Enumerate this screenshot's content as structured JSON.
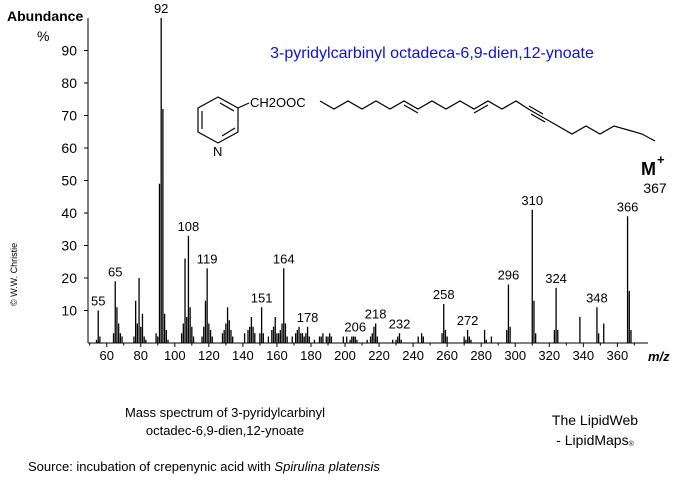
{
  "chart_data": {
    "type": "bar",
    "title": "3-pyridylcarbinyl octadeca-6,9-dien,12-ynoate",
    "ylabel": "Abundance",
    "ylabel_unit": "%",
    "xlabel": "m/z",
    "xlim": [
      49,
      378
    ],
    "ylim": [
      0,
      100
    ],
    "x_ticks": [
      60,
      80,
      100,
      120,
      140,
      160,
      180,
      200,
      220,
      240,
      260,
      280,
      300,
      320,
      340,
      360
    ],
    "y_ticks": [
      10,
      20,
      30,
      40,
      50,
      60,
      70,
      80,
      90
    ],
    "peaks": [
      {
        "mz": 54,
        "i": 1
      },
      {
        "mz": 55,
        "i": 10
      },
      {
        "mz": 56,
        "i": 2
      },
      {
        "mz": 64,
        "i": 3
      },
      {
        "mz": 65,
        "i": 19
      },
      {
        "mz": 66,
        "i": 11
      },
      {
        "mz": 67,
        "i": 6
      },
      {
        "mz": 68,
        "i": 3
      },
      {
        "mz": 69,
        "i": 2
      },
      {
        "mz": 76,
        "i": 2
      },
      {
        "mz": 77,
        "i": 13
      },
      {
        "mz": 78,
        "i": 6
      },
      {
        "mz": 79,
        "i": 20
      },
      {
        "mz": 80,
        "i": 5
      },
      {
        "mz": 81,
        "i": 9
      },
      {
        "mz": 82,
        "i": 2
      },
      {
        "mz": 83,
        "i": 1
      },
      {
        "mz": 89,
        "i": 3
      },
      {
        "mz": 90,
        "i": 2
      },
      {
        "mz": 91,
        "i": 49
      },
      {
        "mz": 92,
        "i": 100
      },
      {
        "mz": 93,
        "i": 72
      },
      {
        "mz": 94,
        "i": 9
      },
      {
        "mz": 95,
        "i": 4
      },
      {
        "mz": 96,
        "i": 1
      },
      {
        "mz": 104,
        "i": 3
      },
      {
        "mz": 105,
        "i": 6
      },
      {
        "mz": 106,
        "i": 26
      },
      {
        "mz": 107,
        "i": 8
      },
      {
        "mz": 108,
        "i": 33
      },
      {
        "mz": 109,
        "i": 11
      },
      {
        "mz": 110,
        "i": 5
      },
      {
        "mz": 111,
        "i": 2
      },
      {
        "mz": 116,
        "i": 2
      },
      {
        "mz": 117,
        "i": 5
      },
      {
        "mz": 118,
        "i": 13
      },
      {
        "mz": 119,
        "i": 23
      },
      {
        "mz": 120,
        "i": 6
      },
      {
        "mz": 121,
        "i": 4
      },
      {
        "mz": 122,
        "i": 2
      },
      {
        "mz": 128,
        "i": 3
      },
      {
        "mz": 129,
        "i": 4
      },
      {
        "mz": 130,
        "i": 6
      },
      {
        "mz": 131,
        "i": 11
      },
      {
        "mz": 132,
        "i": 7
      },
      {
        "mz": 133,
        "i": 4
      },
      {
        "mz": 134,
        "i": 2
      },
      {
        "mz": 141,
        "i": 3
      },
      {
        "mz": 143,
        "i": 4
      },
      {
        "mz": 144,
        "i": 5
      },
      {
        "mz": 145,
        "i": 8
      },
      {
        "mz": 146,
        "i": 5
      },
      {
        "mz": 147,
        "i": 3
      },
      {
        "mz": 150,
        "i": 3
      },
      {
        "mz": 151,
        "i": 11
      },
      {
        "mz": 152,
        "i": 3
      },
      {
        "mz": 155,
        "i": 2
      },
      {
        "mz": 157,
        "i": 4
      },
      {
        "mz": 158,
        "i": 5
      },
      {
        "mz": 159,
        "i": 8
      },
      {
        "mz": 160,
        "i": 3
      },
      {
        "mz": 161,
        "i": 3
      },
      {
        "mz": 162,
        "i": 4
      },
      {
        "mz": 163,
        "i": 6
      },
      {
        "mz": 164,
        "i": 23
      },
      {
        "mz": 165,
        "i": 6
      },
      {
        "mz": 166,
        "i": 2
      },
      {
        "mz": 169,
        "i": 2
      },
      {
        "mz": 171,
        "i": 3
      },
      {
        "mz": 172,
        "i": 4
      },
      {
        "mz": 173,
        "i": 5
      },
      {
        "mz": 174,
        "i": 3
      },
      {
        "mz": 175,
        "i": 3
      },
      {
        "mz": 176,
        "i": 2
      },
      {
        "mz": 177,
        "i": 3
      },
      {
        "mz": 178,
        "i": 5
      },
      {
        "mz": 179,
        "i": 2
      },
      {
        "mz": 182,
        "i": 1
      },
      {
        "mz": 185,
        "i": 2
      },
      {
        "mz": 186,
        "i": 2
      },
      {
        "mz": 187,
        "i": 3
      },
      {
        "mz": 189,
        "i": 2
      },
      {
        "mz": 190,
        "i": 2
      },
      {
        "mz": 191,
        "i": 3
      },
      {
        "mz": 192,
        "i": 2
      },
      {
        "mz": 199,
        "i": 2
      },
      {
        "mz": 201,
        "i": 2
      },
      {
        "mz": 203,
        "i": 1
      },
      {
        "mz": 204,
        "i": 2
      },
      {
        "mz": 205,
        "i": 2
      },
      {
        "mz": 206,
        "i": 2
      },
      {
        "mz": 207,
        "i": 1
      },
      {
        "mz": 213,
        "i": 1
      },
      {
        "mz": 215,
        "i": 2
      },
      {
        "mz": 216,
        "i": 3
      },
      {
        "mz": 217,
        "i": 5
      },
      {
        "mz": 218,
        "i": 6
      },
      {
        "mz": 219,
        "i": 2
      },
      {
        "mz": 228,
        "i": 1
      },
      {
        "mz": 230,
        "i": 1
      },
      {
        "mz": 231,
        "i": 2
      },
      {
        "mz": 232,
        "i": 3
      },
      {
        "mz": 233,
        "i": 1
      },
      {
        "mz": 243,
        "i": 2
      },
      {
        "mz": 245,
        "i": 3
      },
      {
        "mz": 246,
        "i": 2
      },
      {
        "mz": 257,
        "i": 3
      },
      {
        "mz": 258,
        "i": 12
      },
      {
        "mz": 259,
        "i": 4
      },
      {
        "mz": 260,
        "i": 2
      },
      {
        "mz": 270,
        "i": 2
      },
      {
        "mz": 271,
        "i": 1
      },
      {
        "mz": 272,
        "i": 4
      },
      {
        "mz": 273,
        "i": 2
      },
      {
        "mz": 274,
        "i": 1
      },
      {
        "mz": 282,
        "i": 4
      },
      {
        "mz": 283,
        "i": 1
      },
      {
        "mz": 286,
        "i": 2
      },
      {
        "mz": 295,
        "i": 4
      },
      {
        "mz": 296,
        "i": 18
      },
      {
        "mz": 297,
        "i": 5
      },
      {
        "mz": 310,
        "i": 41
      },
      {
        "mz": 311,
        "i": 13
      },
      {
        "mz": 312,
        "i": 3
      },
      {
        "mz": 323,
        "i": 4
      },
      {
        "mz": 324,
        "i": 17
      },
      {
        "mz": 325,
        "i": 4
      },
      {
        "mz": 338,
        "i": 8
      },
      {
        "mz": 348,
        "i": 11
      },
      {
        "mz": 349,
        "i": 3
      },
      {
        "mz": 352,
        "i": 6
      },
      {
        "mz": 366,
        "i": 39
      },
      {
        "mz": 367,
        "i": 16
      },
      {
        "mz": 368,
        "i": 4
      }
    ],
    "peak_labels": [
      {
        "mz": 55,
        "text": "55"
      },
      {
        "mz": 65,
        "text": "65"
      },
      {
        "mz": 92,
        "text": "92"
      },
      {
        "mz": 108,
        "text": "108"
      },
      {
        "mz": 119,
        "text": "119"
      },
      {
        "mz": 151,
        "text": "151"
      },
      {
        "mz": 164,
        "text": "164"
      },
      {
        "mz": 178,
        "text": "178"
      },
      {
        "mz": 206,
        "text": "206"
      },
      {
        "mz": 218,
        "text": "218"
      },
      {
        "mz": 232,
        "text": "232"
      },
      {
        "mz": 258,
        "text": "258"
      },
      {
        "mz": 272,
        "text": "272"
      },
      {
        "mz": 296,
        "text": "296"
      },
      {
        "mz": 310,
        "text": "310"
      },
      {
        "mz": 324,
        "text": "324"
      },
      {
        "mz": 348,
        "text": "348"
      },
      {
        "mz": 366,
        "text": "366"
      }
    ],
    "molecular_ion": {
      "symbol": "M",
      "charge": "+",
      "mz": "367"
    },
    "structure": {
      "group_label": "CH2OOC",
      "ring_atom": "N"
    }
  },
  "caption": {
    "line1": "Mass spectrum of 3-pyridylcarbinyl",
    "line2": "octadec-6,9-dien,12-ynoate"
  },
  "brand": {
    "line1": "The LipidWeb",
    "line2": "- LipidMaps",
    "mark": "®"
  },
  "source": {
    "prefix": "Source: incubation of crepenynic acid with ",
    "organism": "Spirulina platensis"
  },
  "copyright": "© W.W. Christie",
  "colors": {
    "title": "#1010d0",
    "axis": "#000000",
    "peak": "#000000"
  }
}
